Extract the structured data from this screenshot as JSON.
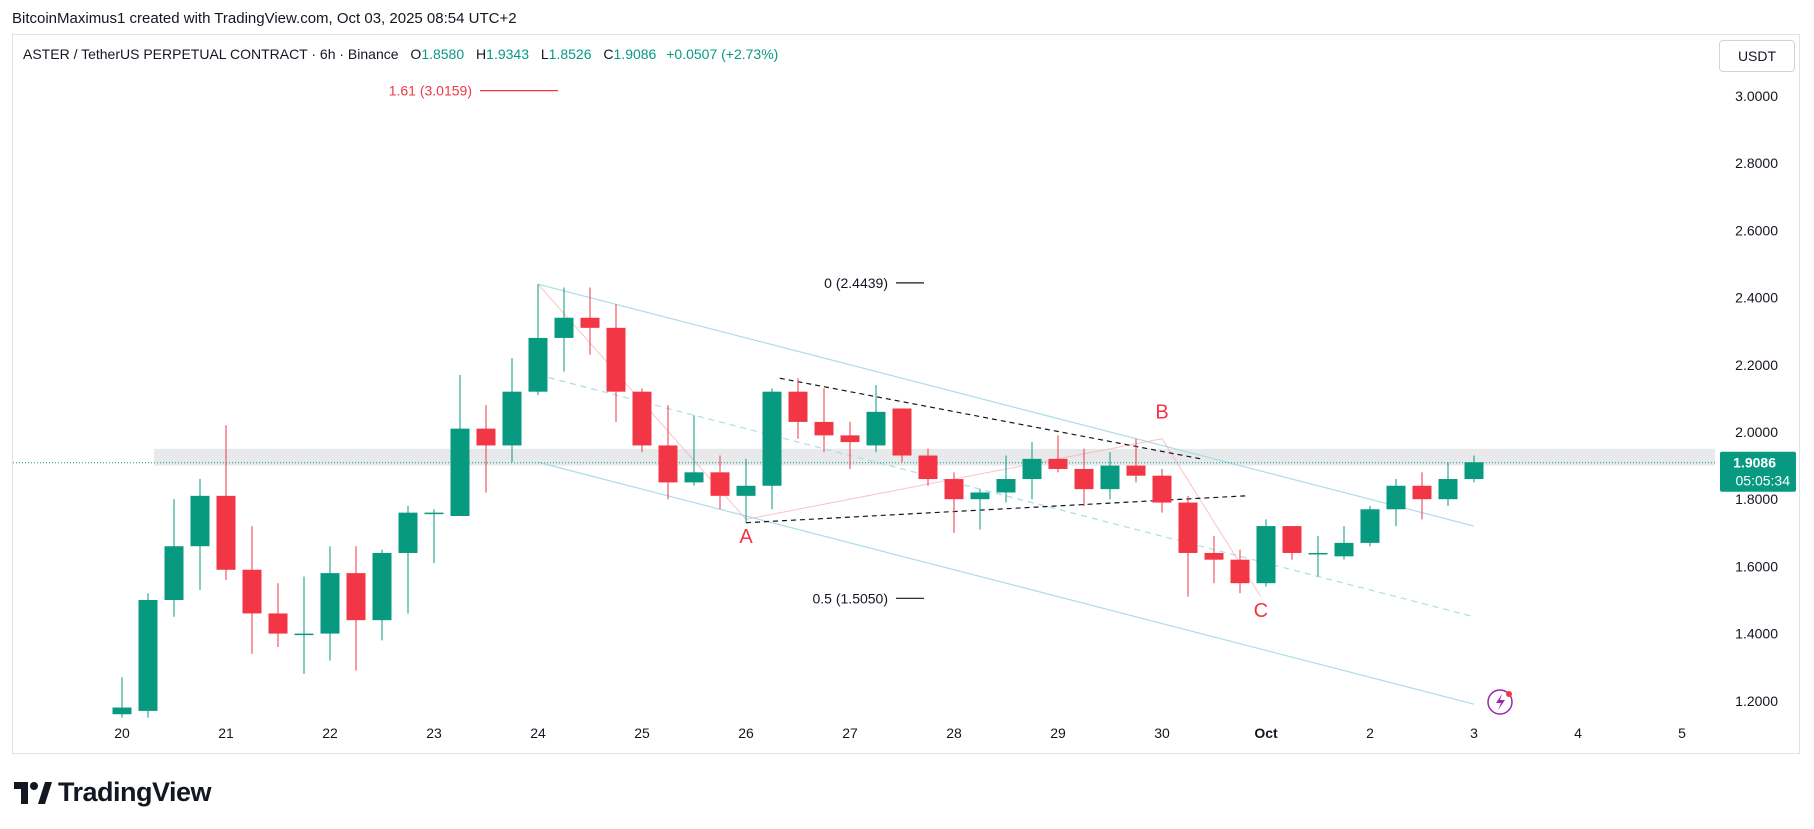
{
  "attribution": "BitcoinMaximus1 created with TradingView.com, Oct 03, 2025 08:54 UTC+2",
  "legend": {
    "symbol": "ASTER / TetherUS PERPETUAL CONTRACT · 6h · Binance",
    "o_label": "O",
    "o_value": "1.8580",
    "h_label": "H",
    "h_value": "1.9343",
    "l_label": "L",
    "l_value": "1.8526",
    "c_label": "C",
    "c_value": "1.9086",
    "change": "+0.0507 (+2.73%)"
  },
  "currency_button": "USDT",
  "brand": {
    "logo_text": "TradingView"
  },
  "colors": {
    "up": "#089981",
    "down": "#f23645",
    "channel": "#a9dde8",
    "fib": "#131722",
    "fib_ext": "#f23645",
    "wave_label": "#f23645",
    "price_line": "#089981"
  },
  "chart_data": {
    "type": "candlestick",
    "timeframe": "6h",
    "ylim": [
      1.13,
      3.08
    ],
    "y_ticks": [
      "3.0000",
      "2.8000",
      "2.6000",
      "2.4000",
      "2.2000",
      "2.0000",
      "1.8000",
      "1.6000",
      "1.4000",
      "1.2000"
    ],
    "y_tick_values": [
      3.0,
      2.8,
      2.6,
      2.4,
      2.2,
      2.0,
      1.8,
      1.6,
      1.4,
      1.2
    ],
    "x_ticks": [
      {
        "label": "20",
        "i": 0
      },
      {
        "label": "21",
        "i": 4
      },
      {
        "label": "22",
        "i": 8
      },
      {
        "label": "23",
        "i": 12
      },
      {
        "label": "24",
        "i": 16
      },
      {
        "label": "25",
        "i": 20
      },
      {
        "label": "26",
        "i": 24
      },
      {
        "label": "27",
        "i": 28
      },
      {
        "label": "28",
        "i": 32
      },
      {
        "label": "29",
        "i": 36
      },
      {
        "label": "30",
        "i": 40
      },
      {
        "label": "Oct",
        "i": 44,
        "bold": true
      },
      {
        "label": "2",
        "i": 48
      },
      {
        "label": "3",
        "i": 52
      },
      {
        "label": "4",
        "i": 56
      },
      {
        "label": "5",
        "i": 60
      }
    ],
    "candles": [
      {
        "o": 1.16,
        "h": 1.27,
        "l": 1.15,
        "c": 1.18
      },
      {
        "o": 1.17,
        "h": 1.52,
        "l": 1.15,
        "c": 1.5
      },
      {
        "o": 1.5,
        "h": 1.8,
        "l": 1.45,
        "c": 1.66
      },
      {
        "o": 1.66,
        "h": 1.86,
        "l": 1.53,
        "c": 1.81
      },
      {
        "o": 1.81,
        "h": 2.02,
        "l": 1.56,
        "c": 1.59
      },
      {
        "o": 1.59,
        "h": 1.72,
        "l": 1.34,
        "c": 1.46
      },
      {
        "o": 1.46,
        "h": 1.55,
        "l": 1.36,
        "c": 1.4
      },
      {
        "o": 1.4,
        "h": 1.57,
        "l": 1.28,
        "c": 1.4
      },
      {
        "o": 1.4,
        "h": 1.66,
        "l": 1.32,
        "c": 1.58
      },
      {
        "o": 1.58,
        "h": 1.66,
        "l": 1.29,
        "c": 1.44
      },
      {
        "o": 1.44,
        "h": 1.65,
        "l": 1.38,
        "c": 1.64
      },
      {
        "o": 1.64,
        "h": 1.78,
        "l": 1.46,
        "c": 1.76
      },
      {
        "o": 1.76,
        "h": 1.77,
        "l": 1.61,
        "c": 1.76
      },
      {
        "o": 1.75,
        "h": 2.17,
        "l": 1.75,
        "c": 2.01
      },
      {
        "o": 2.01,
        "h": 2.08,
        "l": 1.82,
        "c": 1.96
      },
      {
        "o": 1.96,
        "h": 2.22,
        "l": 1.91,
        "c": 2.12
      },
      {
        "o": 2.12,
        "h": 2.44,
        "l": 2.11,
        "c": 2.28
      },
      {
        "o": 2.28,
        "h": 2.43,
        "l": 2.18,
        "c": 2.34
      },
      {
        "o": 2.34,
        "h": 2.43,
        "l": 2.23,
        "c": 2.31
      },
      {
        "o": 2.31,
        "h": 2.38,
        "l": 2.03,
        "c": 2.12
      },
      {
        "o": 2.12,
        "h": 2.13,
        "l": 1.94,
        "c": 1.96
      },
      {
        "o": 1.96,
        "h": 2.08,
        "l": 1.8,
        "c": 1.85
      },
      {
        "o": 1.85,
        "h": 2.05,
        "l": 1.84,
        "c": 1.88
      },
      {
        "o": 1.88,
        "h": 1.93,
        "l": 1.77,
        "c": 1.81
      },
      {
        "o": 1.81,
        "h": 1.92,
        "l": 1.73,
        "c": 1.84
      },
      {
        "o": 1.84,
        "h": 2.13,
        "l": 1.77,
        "c": 2.12
      },
      {
        "o": 2.12,
        "h": 2.16,
        "l": 1.98,
        "c": 2.03
      },
      {
        "o": 2.03,
        "h": 2.13,
        "l": 1.94,
        "c": 1.99
      },
      {
        "o": 1.99,
        "h": 2.03,
        "l": 1.89,
        "c": 1.97
      },
      {
        "o": 1.96,
        "h": 2.14,
        "l": 1.94,
        "c": 2.06
      },
      {
        "o": 2.07,
        "h": 2.07,
        "l": 1.91,
        "c": 1.93
      },
      {
        "o": 1.93,
        "h": 1.95,
        "l": 1.84,
        "c": 1.86
      },
      {
        "o": 1.86,
        "h": 1.88,
        "l": 1.7,
        "c": 1.8
      },
      {
        "o": 1.8,
        "h": 1.83,
        "l": 1.71,
        "c": 1.82
      },
      {
        "o": 1.82,
        "h": 1.93,
        "l": 1.79,
        "c": 1.86
      },
      {
        "o": 1.86,
        "h": 1.97,
        "l": 1.8,
        "c": 1.92
      },
      {
        "o": 1.92,
        "h": 1.99,
        "l": 1.88,
        "c": 1.89
      },
      {
        "o": 1.89,
        "h": 1.95,
        "l": 1.78,
        "c": 1.83
      },
      {
        "o": 1.83,
        "h": 1.94,
        "l": 1.8,
        "c": 1.9
      },
      {
        "o": 1.9,
        "h": 1.98,
        "l": 1.85,
        "c": 1.87
      },
      {
        "o": 1.87,
        "h": 1.89,
        "l": 1.76,
        "c": 1.79
      },
      {
        "o": 1.79,
        "h": 1.81,
        "l": 1.51,
        "c": 1.64
      },
      {
        "o": 1.64,
        "h": 1.69,
        "l": 1.55,
        "c": 1.62
      },
      {
        "o": 1.62,
        "h": 1.65,
        "l": 1.52,
        "c": 1.55
      },
      {
        "o": 1.55,
        "h": 1.74,
        "l": 1.54,
        "c": 1.72
      },
      {
        "o": 1.72,
        "h": 1.72,
        "l": 1.62,
        "c": 1.64
      },
      {
        "o": 1.64,
        "h": 1.69,
        "l": 1.57,
        "c": 1.64
      },
      {
        "o": 1.63,
        "h": 1.72,
        "l": 1.62,
        "c": 1.67
      },
      {
        "o": 1.67,
        "h": 1.78,
        "l": 1.66,
        "c": 1.77
      },
      {
        "o": 1.77,
        "h": 1.86,
        "l": 1.72,
        "c": 1.84
      },
      {
        "o": 1.84,
        "h": 1.88,
        "l": 1.74,
        "c": 1.8
      },
      {
        "o": 1.8,
        "h": 1.91,
        "l": 1.78,
        "c": 1.86
      },
      {
        "o": 1.86,
        "h": 1.93,
        "l": 1.85,
        "c": 1.91
      }
    ],
    "last_price": "1.9086",
    "countdown": "05:05:34",
    "resistance_zone": [
      1.9,
      1.95
    ],
    "fib_levels": [
      {
        "label": "1.61 (3.0159)",
        "price": 3.0159,
        "i": 14,
        "kind": "ext"
      },
      {
        "label": "0 (2.4439)",
        "price": 2.4439,
        "i": 30
      },
      {
        "label": "0.5 (1.5050)",
        "price": 1.505,
        "i": 30
      }
    ],
    "wave_labels": [
      {
        "label": "A",
        "i": 24,
        "price": 1.67
      },
      {
        "label": "B",
        "i": 40,
        "price": 2.04
      },
      {
        "label": "C",
        "i": 43.8,
        "price": 1.45
      }
    ],
    "channel": {
      "upper": [
        {
          "i": 16,
          "p": 2.44
        },
        {
          "i": 52,
          "p": 1.72
        }
      ],
      "mid": [
        {
          "i": 16,
          "p": 2.17
        },
        {
          "i": 52,
          "p": 1.45
        }
      ],
      "lower": [
        {
          "i": 16,
          "p": 1.91
        },
        {
          "i": 52,
          "p": 1.19
        }
      ]
    },
    "triangle": {
      "upper": [
        {
          "i": 25.3,
          "p": 2.16
        },
        {
          "i": 41.5,
          "p": 1.92
        }
      ],
      "lower": [
        {
          "i": 24,
          "p": 1.73
        },
        {
          "i": 43.2,
          "p": 1.81
        }
      ]
    },
    "wave_path": [
      {
        "i": 16,
        "p": 2.44
      },
      {
        "i": 24,
        "p": 1.74
      },
      {
        "i": 40,
        "p": 1.98
      },
      {
        "i": 43.8,
        "p": 1.51
      }
    ]
  }
}
